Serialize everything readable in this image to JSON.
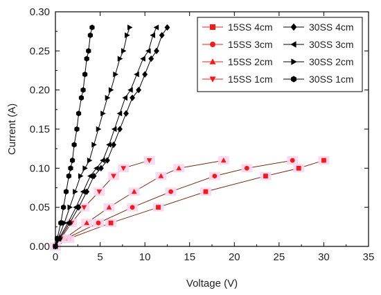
{
  "chart_data": {
    "type": "scatter",
    "title": "",
    "xlabel": "Voltage (V)",
    "ylabel": "Current (A)",
    "xlim": [
      0,
      35
    ],
    "ylim": [
      0,
      0.3
    ],
    "x_ticks": [
      "0",
      "5",
      "10",
      "15",
      "20",
      "25",
      "30",
      "35"
    ],
    "y_ticks": [
      "0.00",
      "0.05",
      "0.10",
      "0.15",
      "0.20",
      "0.25",
      "0.30"
    ],
    "grid": false,
    "legend_position": "top-right",
    "series": [
      {
        "name": "15SS 4cm",
        "marker": "square",
        "color": "#ee1c1c",
        "line_color": "#7a2a10",
        "x": [
          0.0,
          1.5,
          6.2,
          11.5,
          16.8,
          23.5,
          27.2,
          30.0
        ],
        "y": [
          0.0,
          0.01,
          0.03,
          0.05,
          0.07,
          0.09,
          0.1,
          0.11
        ]
      },
      {
        "name": "15SS 3cm",
        "marker": "circle",
        "color": "#ee1c1c",
        "line_color": "#7a2a10",
        "x": [
          0.0,
          1.2,
          4.8,
          8.6,
          12.9,
          17.8,
          21.4,
          26.5
        ],
        "y": [
          0.0,
          0.01,
          0.03,
          0.05,
          0.07,
          0.09,
          0.1,
          0.11
        ]
      },
      {
        "name": "15SS 2cm",
        "marker": "triangle-up",
        "color": "#ee1c1c",
        "line_color": "#7a2a10",
        "x": [
          0.0,
          1.0,
          3.5,
          6.0,
          8.8,
          11.8,
          13.8,
          18.8
        ],
        "y": [
          0.0,
          0.01,
          0.03,
          0.05,
          0.07,
          0.09,
          0.1,
          0.11
        ]
      },
      {
        "name": "15SS 1cm",
        "marker": "triangle-down",
        "color": "#ee1c1c",
        "line_color": "#7a2a10",
        "x": [
          0.0,
          0.6,
          1.8,
          3.2,
          4.9,
          6.5,
          7.6,
          10.5
        ],
        "y": [
          0.0,
          0.01,
          0.03,
          0.05,
          0.07,
          0.09,
          0.1,
          0.11
        ]
      },
      {
        "name": "30SS 4cm",
        "marker": "diamond",
        "color": "#000000",
        "line_color": "#000000",
        "x": [
          0.0,
          0.5,
          1.6,
          2.6,
          3.5,
          4.3,
          5.1,
          5.8,
          6.5,
          7.2,
          7.9,
          8.6,
          9.3,
          10.0,
          10.7,
          11.3,
          11.9,
          12.5
        ],
        "y": [
          0.0,
          0.01,
          0.03,
          0.05,
          0.07,
          0.09,
          0.1,
          0.11,
          0.13,
          0.15,
          0.17,
          0.19,
          0.2,
          0.22,
          0.24,
          0.25,
          0.27,
          0.28
        ]
      },
      {
        "name": "30SS 3cm",
        "marker": "triangle-left",
        "color": "#000000",
        "line_color": "#000000",
        "x": [
          0.0,
          0.4,
          1.4,
          2.3,
          3.1,
          3.9,
          4.6,
          5.3,
          6.0,
          6.6,
          7.2,
          7.8,
          8.4,
          9.1,
          9.8,
          10.4,
          10.9,
          11.3
        ],
        "y": [
          0.0,
          0.01,
          0.03,
          0.05,
          0.07,
          0.09,
          0.1,
          0.11,
          0.13,
          0.15,
          0.17,
          0.19,
          0.2,
          0.22,
          0.24,
          0.25,
          0.27,
          0.28
        ]
      },
      {
        "name": "30SS 2cm",
        "marker": "triangle-right",
        "color": "#000000",
        "line_color": "#000000",
        "x": [
          0.0,
          0.3,
          1.0,
          1.6,
          2.2,
          2.8,
          3.3,
          3.8,
          4.3,
          4.8,
          5.3,
          5.8,
          6.2,
          6.7,
          7.2,
          7.6,
          8.0,
          8.3
        ],
        "y": [
          0.0,
          0.01,
          0.03,
          0.05,
          0.07,
          0.09,
          0.1,
          0.11,
          0.13,
          0.15,
          0.17,
          0.19,
          0.2,
          0.22,
          0.24,
          0.25,
          0.27,
          0.28
        ]
      },
      {
        "name": "30SS 1cm",
        "marker": "hexagon",
        "color": "#000000",
        "line_color": "#000000",
        "x": [
          0.0,
          0.2,
          0.6,
          0.9,
          1.2,
          1.5,
          1.7,
          1.9,
          2.1,
          2.4,
          2.6,
          2.9,
          3.1,
          3.3,
          3.5,
          3.7,
          3.9,
          4.1
        ],
        "y": [
          0.0,
          0.01,
          0.03,
          0.05,
          0.07,
          0.09,
          0.1,
          0.11,
          0.13,
          0.15,
          0.17,
          0.19,
          0.2,
          0.22,
          0.24,
          0.25,
          0.27,
          0.28
        ]
      }
    ],
    "legend_order": [
      [
        "15SS 4cm",
        "30SS 4cm"
      ],
      [
        "15SS 3cm",
        "30SS 3cm"
      ],
      [
        "15SS 2cm",
        "30SS 2cm"
      ],
      [
        "15SS 1cm",
        "30SS 1cm"
      ]
    ]
  }
}
